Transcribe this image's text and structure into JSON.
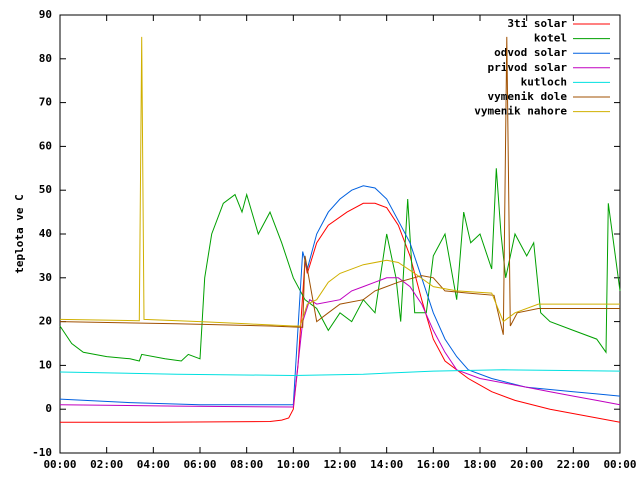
{
  "chart_data": {
    "type": "line",
    "y_label": "teplota ve C",
    "xlim": [
      0,
      24
    ],
    "ylim": [
      -10,
      90
    ],
    "xticks": [
      {
        "value": 0,
        "label": "00:00"
      },
      {
        "value": 2,
        "label": "02:00"
      },
      {
        "value": 4,
        "label": "04:00"
      },
      {
        "value": 6,
        "label": "06:00"
      },
      {
        "value": 8,
        "label": "08:00"
      },
      {
        "value": 10,
        "label": "10:00"
      },
      {
        "value": 12,
        "label": "12:00"
      },
      {
        "value": 14,
        "label": "14:00"
      },
      {
        "value": 16,
        "label": "16:00"
      },
      {
        "value": 18,
        "label": "18:00"
      },
      {
        "value": 20,
        "label": "20:00"
      },
      {
        "value": 22,
        "label": "22:00"
      },
      {
        "value": 24,
        "label": "00:00"
      }
    ],
    "yticks": [
      -10,
      0,
      10,
      20,
      30,
      40,
      50,
      60,
      70,
      80,
      90
    ],
    "legend": "top-right",
    "series": [
      {
        "name": "3ti solar",
        "color": "#ff0000",
        "x": [
          0,
          4,
          9,
          9.5,
          9.8,
          10,
          10.2,
          10.5,
          10.6,
          11,
          11.5,
          12.3,
          13,
          13.5,
          14,
          14.5,
          15,
          15.5,
          16,
          16.5,
          17.5,
          18.5,
          19.5,
          21,
          22.5,
          24
        ],
        "values": [
          -3,
          -3,
          -2.8,
          -2.5,
          -2,
          0,
          10,
          34,
          31,
          38,
          42,
          45,
          47,
          47,
          46,
          42,
          35,
          25,
          16,
          11,
          7,
          4,
          2,
          0,
          -1.5,
          -3
        ]
      },
      {
        "name": "kotel",
        "color": "#00a000",
        "x": [
          0,
          0.5,
          1,
          2,
          3,
          3.4,
          3.5,
          4.5,
          5.2,
          5.5,
          6,
          6.2,
          6.5,
          7,
          7.5,
          7.8,
          8,
          8.5,
          9,
          9.5,
          10,
          10.5,
          11,
          11.5,
          12,
          12.5,
          13,
          13.5,
          14,
          14.4,
          14.6,
          14.9,
          15.2,
          15.7,
          16,
          16.5,
          17,
          17.3,
          17.6,
          18,
          18.5,
          18.7,
          18.9,
          19.1,
          19.5,
          20,
          20.3,
          20.6,
          21,
          22,
          23,
          23.4,
          23.5,
          24
        ],
        "values": [
          19,
          15,
          13,
          12,
          11.5,
          11,
          12.5,
          11.5,
          11,
          12.5,
          11.5,
          30,
          40,
          47,
          49,
          45,
          49,
          40,
          45,
          38,
          30,
          25,
          23,
          18,
          22,
          20,
          25,
          22,
          40,
          30,
          20,
          48,
          22,
          22,
          35,
          40,
          25,
          45,
          38,
          40,
          32,
          55,
          40,
          30,
          40,
          35,
          38,
          22,
          20,
          18,
          16,
          13,
          47,
          27
        ]
      },
      {
        "name": "odvod solar",
        "color": "#0060e0",
        "x": [
          0,
          3,
          6,
          10,
          10.4,
          10.6,
          11,
          11.5,
          12,
          12.5,
          13,
          13.5,
          14,
          14.6,
          15,
          15.5,
          16,
          16.5,
          17,
          17.5,
          18.5,
          20,
          21,
          22,
          23,
          24
        ],
        "values": [
          2.3,
          1.5,
          1,
          1,
          36,
          32,
          40,
          45,
          48,
          50,
          51,
          50.5,
          48,
          42,
          38,
          30,
          22,
          16,
          12,
          9,
          7,
          5,
          4.5,
          4,
          3.5,
          3
        ]
      },
      {
        "name": "privod solar",
        "color": "#c000c0",
        "x": [
          0,
          5,
          10,
          10.4,
          10.7,
          11,
          12,
          12.5,
          13,
          13.5,
          14,
          14.5,
          15,
          15.5,
          16,
          16.5,
          17,
          18,
          19,
          20,
          21,
          22,
          23,
          24
        ],
        "values": [
          1,
          0.7,
          0.5,
          20,
          25,
          24,
          25,
          27,
          28,
          29,
          30,
          30,
          28,
          24,
          18,
          13,
          9,
          7,
          6,
          5,
          4,
          3,
          2,
          1
        ]
      },
      {
        "name": "kutloch",
        "color": "#00e0e0",
        "x": [
          0,
          5,
          10,
          13,
          16,
          19,
          24
        ],
        "values": [
          8.5,
          8,
          7.7,
          8,
          8.7,
          9,
          8.7
        ]
      },
      {
        "name": "vymenik dole",
        "color": "#a05000",
        "x": [
          0,
          5,
          9,
          10.4,
          10.5,
          11,
          11.5,
          12,
          13,
          13.5,
          14.5,
          15.5,
          16,
          16.5,
          17.5,
          18.6,
          19,
          19.15,
          19.3,
          19.6,
          20.5,
          24
        ],
        "values": [
          20,
          19.5,
          19,
          18.7,
          35,
          20,
          22,
          24,
          25,
          27,
          29,
          30.5,
          30,
          27,
          26.5,
          26,
          17,
          85,
          19,
          22,
          23,
          23
        ]
      },
      {
        "name": "vymenik nahore",
        "color": "#d0b000",
        "x": [
          0,
          3.4,
          3.5,
          3.6,
          6,
          8,
          10,
          10.3,
          10.6,
          11,
          11.5,
          12,
          13,
          14,
          14.5,
          15.2,
          16,
          17,
          18.5,
          19,
          19.5,
          20.5,
          24
        ],
        "values": [
          20.5,
          20.2,
          85,
          20.5,
          20,
          19.5,
          19,
          19,
          24,
          25,
          29,
          31,
          33,
          34,
          33.5,
          31,
          28,
          27,
          26.5,
          20,
          22,
          24,
          24
        ]
      }
    ]
  }
}
